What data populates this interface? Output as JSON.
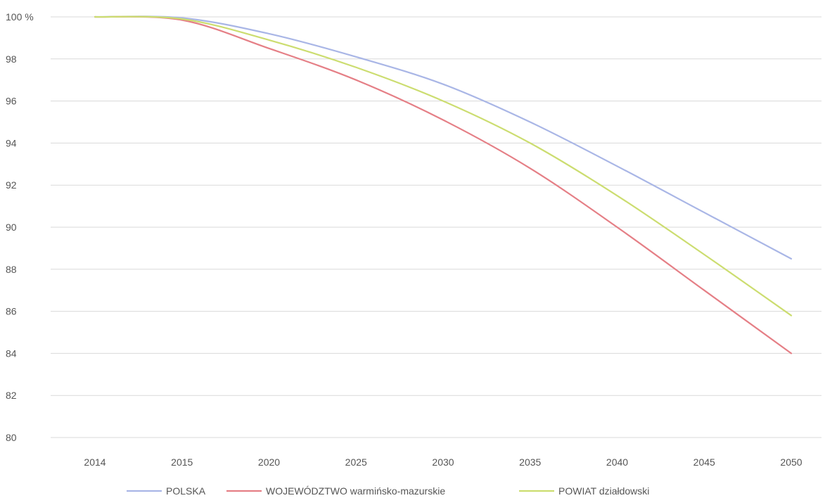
{
  "chart_data": {
    "type": "line",
    "title": "",
    "xlabel": "",
    "ylabel": "",
    "categories": [
      "2014",
      "2015",
      "2020",
      "2025",
      "2030",
      "2035",
      "2040",
      "2045",
      "2050"
    ],
    "y_tick_labels": [
      "100 %",
      "98",
      "96",
      "94",
      "92",
      "90",
      "88",
      "86",
      "84",
      "82",
      "80"
    ],
    "y_ticks": [
      100,
      98,
      96,
      94,
      92,
      90,
      88,
      86,
      84,
      82,
      80
    ],
    "ylim": [
      80,
      100
    ],
    "grid": true,
    "legend_position": "bottom",
    "series": [
      {
        "name": "POLSKA",
        "color": "#a9b6e6",
        "values": [
          100,
          99.95,
          99.2,
          98.1,
          96.8,
          95.0,
          92.9,
          90.7,
          88.5
        ]
      },
      {
        "name": "WOJEWÓDZTWO warmińsko-mazurskie",
        "color": "#e57f86",
        "values": [
          100,
          99.85,
          98.5,
          97.0,
          95.1,
          92.8,
          90.0,
          87.0,
          84.0
        ]
      },
      {
        "name": "POWIAT działdowski",
        "color": "#ccdd70",
        "values": [
          100,
          99.9,
          98.9,
          97.6,
          96.0,
          94.0,
          91.5,
          88.7,
          85.8
        ]
      }
    ]
  }
}
